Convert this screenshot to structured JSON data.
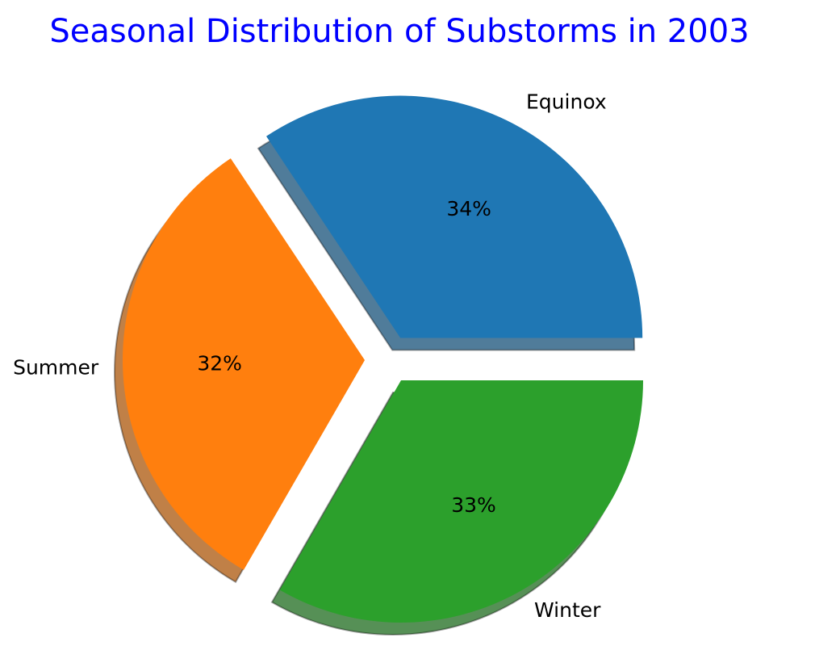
{
  "chart_data": {
    "type": "pie",
    "title": "Seasonal Distribution of Substorms in 2003",
    "title_color": "#0000ff",
    "start_angle_deg": 0,
    "direction": "counterclockwise",
    "shadow": true,
    "slices": [
      {
        "label": "Equinox",
        "value": 34,
        "pct_text": "34%",
        "color": "#1f77b4",
        "exploded": true
      },
      {
        "label": "Summer",
        "value": 32,
        "pct_text": "32%",
        "color": "#ff7f0e",
        "exploded": true
      },
      {
        "label": "Winter",
        "value": 33,
        "pct_text": "33%",
        "color": "#2ca02c",
        "exploded": true
      }
    ]
  }
}
